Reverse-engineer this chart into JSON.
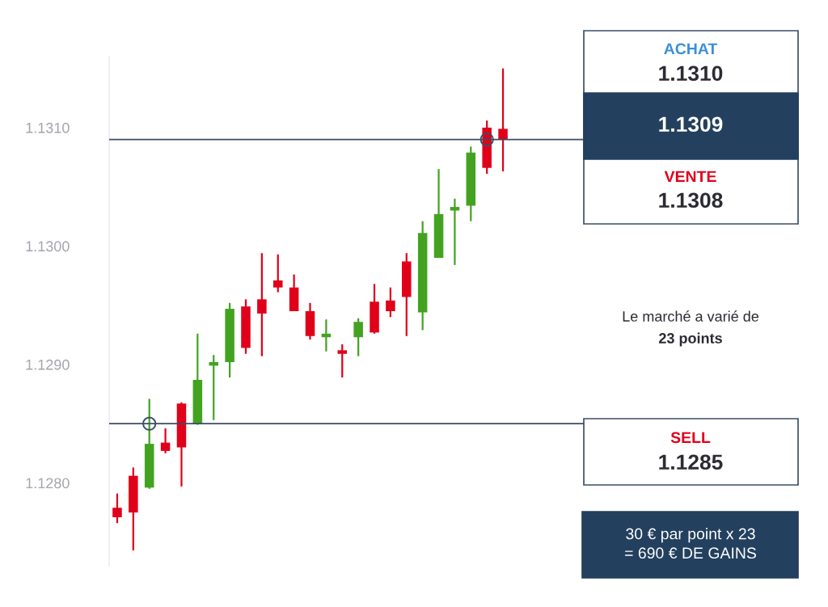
{
  "chart_data": {
    "type": "candlestick",
    "categories": [
      null,
      null,
      null,
      null,
      null,
      null,
      null,
      null,
      null,
      null,
      null,
      null,
      null,
      null,
      null,
      null,
      null,
      null,
      null,
      null,
      null,
      null,
      null,
      null,
      null
    ],
    "ohlc": [
      [
        1.12779,
        1.12791,
        1.12766,
        1.12771
      ],
      [
        1.12806,
        1.12813,
        1.12743,
        1.12775
      ],
      [
        1.12796,
        1.12871,
        1.12795,
        1.12833
      ],
      [
        1.12834,
        1.12846,
        1.12825,
        1.12827
      ],
      [
        1.12867,
        1.12868,
        1.12797,
        1.1283
      ],
      [
        1.1285,
        1.12926,
        1.12849,
        1.12887
      ],
      [
        1.12899,
        1.12908,
        1.12853,
        1.12902
      ],
      [
        1.12902,
        1.12952,
        1.12889,
        1.12947
      ],
      [
        1.12949,
        1.12955,
        1.12909,
        1.12914
      ],
      [
        1.12955,
        1.12994,
        1.12907,
        1.12943
      ],
      [
        1.12971,
        1.12993,
        1.12961,
        1.12965
      ],
      [
        1.12965,
        1.12976,
        1.12945,
        1.12945
      ],
      [
        1.12945,
        1.12952,
        1.12921,
        1.12924
      ],
      [
        1.12923,
        1.12938,
        1.12911,
        1.12926
      ],
      [
        1.12912,
        1.12917,
        1.12889,
        1.12909
      ],
      [
        1.12923,
        1.12939,
        1.12907,
        1.12936
      ],
      [
        1.12953,
        1.12968,
        1.12926,
        1.12927
      ],
      [
        1.12954,
        1.12965,
        1.1294,
        1.12945
      ],
      [
        1.12987,
        1.12994,
        1.12924,
        1.12957
      ],
      [
        1.12944,
        1.13021,
        1.12929,
        1.13011
      ],
      [
        1.1299,
        1.13065,
        1.1299,
        1.13027
      ],
      [
        1.1303,
        1.1304,
        1.12984,
        1.13033
      ],
      [
        1.13034,
        1.13084,
        1.13021,
        1.13079
      ],
      [
        1.131,
        1.13106,
        1.13061,
        1.13066
      ],
      [
        1.13099,
        1.1315,
        1.13063,
        1.1309
      ]
    ],
    "colors": [
      "#e0001a",
      "#e0001a",
      "#43a321",
      "#e0001a",
      "#e0001a",
      "#43a321",
      "#43a321",
      "#43a321",
      "#e0001a",
      "#e0001a",
      "#e0001a",
      "#e0001a",
      "#e0001a",
      "#43a321",
      "#e0001a",
      "#43a321",
      "#e0001a",
      "#e0001a",
      "#e0001a",
      "#43a321",
      "#43a321",
      "#43a321",
      "#43a321",
      "#e0001a",
      "#e0001a"
    ],
    "ylim": [
      1.1273,
      1.1316
    ],
    "ref_lines": [
      {
        "axis": "y",
        "value": 1.1309,
        "color": "#3b4d66"
      },
      {
        "axis": "y",
        "value": 1.1285,
        "color": "#3b4d66"
      }
    ],
    "yticks": [
      {
        "value": 1.128,
        "label": "1.1280"
      },
      {
        "value": 1.129,
        "label": "1.1290"
      },
      {
        "value": 1.13,
        "label": "1.1300"
      },
      {
        "value": 1.131,
        "label": "1.1310"
      }
    ],
    "tick_labels": "y",
    "grid": false,
    "annotations": [
      "ACHAT",
      "1.1310",
      "1.1309",
      "VENTE",
      "1.1308",
      "Le marché a varié de",
      "23 points",
      "SELL",
      "1.1285",
      "30 € par point x 23\n= 690 € DE GAINS"
    ]
  }
}
